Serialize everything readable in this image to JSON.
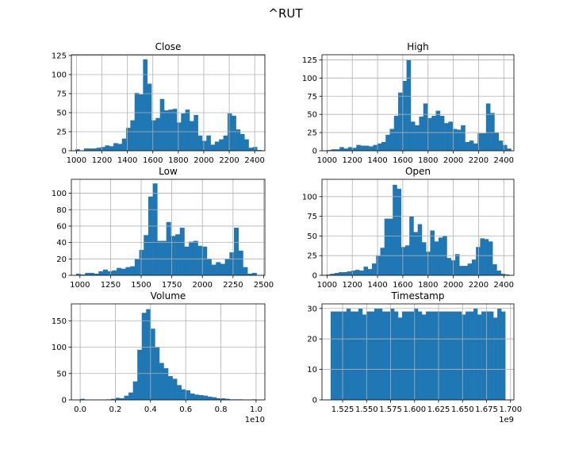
{
  "suptitle": "^RUT",
  "colors": {
    "bar": "#1f77b4",
    "grid": "#b0b0b0",
    "axis": "#000000"
  },
  "chart_data": [
    {
      "type": "bar",
      "title": "Close",
      "xlabel": "",
      "ylabel": "",
      "xlim": [
        960,
        2480
      ],
      "ylim": [
        0,
        126
      ],
      "xticks": [
        1000,
        1200,
        1400,
        1600,
        1800,
        2000,
        2200,
        2400
      ],
      "yticks": [
        0,
        25,
        50,
        75,
        100,
        125
      ],
      "grid": true,
      "bin_range": [
        992,
        2452
      ],
      "values": [
        2,
        0,
        3,
        3,
        3,
        4,
        5,
        7,
        6,
        10,
        9,
        16,
        30,
        40,
        76,
        74,
        120,
        88,
        40,
        43,
        68,
        53,
        54,
        55,
        37,
        49,
        54,
        39,
        47,
        20,
        13,
        20,
        8,
        12,
        15,
        20,
        49,
        46,
        28,
        22,
        15,
        4,
        5,
        1
      ]
    },
    {
      "type": "bar",
      "title": "High",
      "xlabel": "",
      "ylabel": "",
      "xlim": [
        960,
        2480
      ],
      "ylim": [
        0,
        132
      ],
      "xticks": [
        1000,
        1200,
        1400,
        1600,
        1800,
        2000,
        2200,
        2400
      ],
      "yticks": [
        0,
        25,
        50,
        75,
        100,
        125
      ],
      "grid": true,
      "bin_range": [
        1000,
        2458
      ],
      "values": [
        1,
        2,
        2,
        5,
        3,
        5,
        4,
        8,
        7,
        7,
        6,
        8,
        10,
        12,
        22,
        30,
        48,
        80,
        96,
        125,
        40,
        35,
        47,
        65,
        45,
        48,
        55,
        48,
        38,
        40,
        30,
        29,
        35,
        12,
        14,
        10,
        24,
        24,
        65,
        52,
        25,
        14,
        8,
        3
      ]
    },
    {
      "type": "bar",
      "title": "Low",
      "xlabel": "",
      "ylabel": "",
      "xlim": [
        930,
        2510
      ],
      "ylim": [
        0,
        117
      ],
      "xticks": [
        1000,
        1250,
        1500,
        1750,
        2000,
        2250,
        2500
      ],
      "yticks": [
        0,
        20,
        40,
        60,
        80,
        100
      ],
      "grid": true,
      "bin_range": [
        968,
        2442
      ],
      "values": [
        2,
        1,
        3,
        3,
        2,
        5,
        7,
        5,
        6,
        9,
        8,
        10,
        11,
        20,
        31,
        49,
        96,
        112,
        42,
        42,
        65,
        48,
        50,
        58,
        35,
        41,
        42,
        36,
        35,
        20,
        13,
        16,
        14,
        20,
        28,
        58,
        30,
        10,
        2,
        3
      ]
    },
    {
      "type": "bar",
      "title": "Open",
      "xlabel": "",
      "ylabel": "",
      "xlim": [
        960,
        2480
      ],
      "ylim": [
        0,
        122
      ],
      "xticks": [
        1000,
        1200,
        1400,
        1600,
        1800,
        2000,
        2200,
        2400
      ],
      "yticks": [
        0,
        25,
        50,
        75,
        100
      ],
      "grid": true,
      "bin_range": [
        993,
        2443
      ],
      "values": [
        1,
        2,
        3,
        4,
        4,
        5,
        6,
        7,
        6,
        11,
        8,
        15,
        25,
        35,
        72,
        72,
        115,
        110,
        36,
        38,
        75,
        55,
        65,
        42,
        30,
        57,
        43,
        48,
        50,
        22,
        19,
        27,
        12,
        12,
        15,
        20,
        36,
        47,
        46,
        43,
        14,
        6,
        2,
        1
      ]
    },
    {
      "type": "bar",
      "title": "Volume",
      "xlabel": "",
      "ylabel": "",
      "offset_label": "1e10",
      "xlim": [
        -0.05,
        1.05
      ],
      "ylim": [
        0,
        182
      ],
      "xticks": [
        0.0,
        0.2,
        0.4,
        0.6,
        0.8,
        1.0
      ],
      "xticklabels": [
        "0.0",
        "0.2",
        "0.4",
        "0.6",
        "0.8",
        "1.0"
      ],
      "yticks": [
        0,
        50,
        100,
        150
      ],
      "grid": true,
      "bin_range": [
        0.0,
        1.0
      ],
      "values": [
        2,
        0,
        0,
        0,
        0,
        0,
        1,
        2,
        4,
        3,
        8,
        14,
        35,
        95,
        165,
        172,
        135,
        100,
        70,
        60,
        45,
        40,
        28,
        20,
        18,
        12,
        10,
        9,
        8,
        6,
        5,
        3,
        3,
        2,
        1,
        1,
        1,
        0,
        0,
        1
      ]
    },
    {
      "type": "bar",
      "title": "Timestamp",
      "xlabel": "",
      "ylabel": "",
      "offset_label": "1e9",
      "xlim": [
        1.5035,
        1.7035
      ],
      "ylim": [
        0,
        31.5
      ],
      "xticks": [
        1.525,
        1.55,
        1.575,
        1.6,
        1.625,
        1.65,
        1.675,
        1.7
      ],
      "xticklabels": [
        "1.525",
        "1.550",
        "1.575",
        "1.600",
        "1.625",
        "1.650",
        "1.675",
        "1.700"
      ],
      "yticks": [
        0,
        10,
        20,
        30
      ],
      "grid": true,
      "bin_range": [
        1.5125,
        1.6945
      ],
      "values": [
        29,
        29,
        29,
        29,
        30,
        29,
        29,
        30,
        28,
        29,
        29,
        30,
        30,
        29,
        29,
        30,
        29,
        27,
        29,
        29,
        29,
        30,
        29,
        28,
        29,
        29,
        29,
        29,
        29,
        29,
        29,
        29,
        29,
        28,
        29,
        29,
        30,
        28,
        29,
        29,
        29,
        27,
        30,
        29
      ]
    }
  ]
}
